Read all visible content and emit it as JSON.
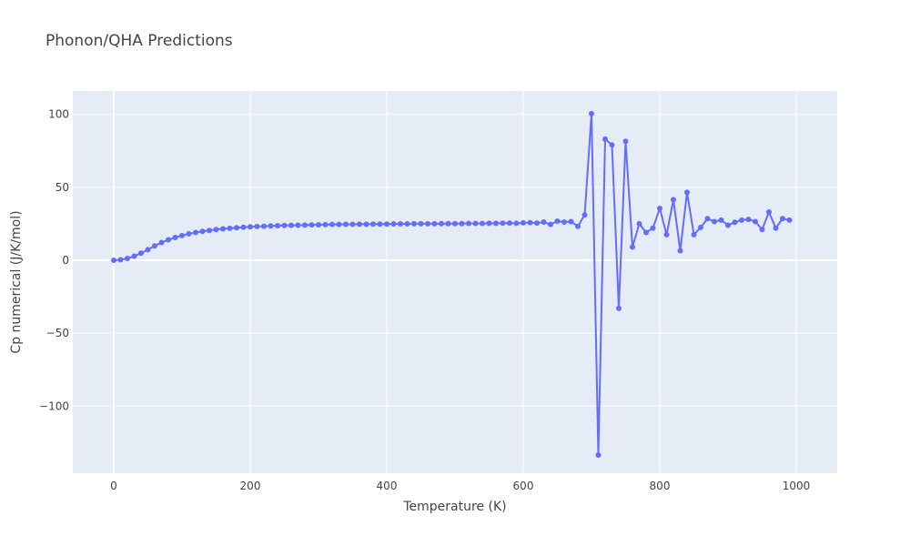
{
  "chart_data": {
    "type": "line",
    "title": "Phonon/QHA Predictions",
    "xlabel": "Temperature (K)",
    "ylabel": "Cp numerical (J/K/mol)",
    "xlim": [
      -60,
      1060
    ],
    "ylim": [
      -146,
      116
    ],
    "xticks": [
      0,
      200,
      400,
      600,
      800,
      1000
    ],
    "xtick_labels": [
      "0",
      "200",
      "400",
      "600",
      "800",
      "1000"
    ],
    "yticks": [
      -100,
      -50,
      0,
      50,
      100
    ],
    "ytick_labels": [
      "−100",
      "−50",
      "0",
      "50",
      "100"
    ],
    "grid": true,
    "line_color": "#636efa",
    "plot_bg": "#e5ecf6",
    "series": [
      {
        "mode": "lines+markers",
        "x": [
          0,
          10,
          20,
          30,
          40,
          50,
          60,
          70,
          80,
          90,
          100,
          110,
          120,
          130,
          140,
          150,
          160,
          170,
          180,
          190,
          200,
          210,
          220,
          230,
          240,
          250,
          260,
          270,
          280,
          290,
          300,
          310,
          320,
          330,
          340,
          350,
          360,
          370,
          380,
          390,
          400,
          410,
          420,
          430,
          440,
          450,
          460,
          470,
          480,
          490,
          500,
          510,
          520,
          530,
          540,
          550,
          560,
          570,
          580,
          590,
          600,
          610,
          620,
          630,
          640,
          650,
          660,
          670,
          680,
          690,
          700,
          710,
          720,
          730,
          740,
          750,
          760,
          770,
          780,
          790,
          800,
          810,
          820,
          830,
          840,
          850,
          860,
          870,
          880,
          890,
          900,
          910,
          920,
          930,
          940,
          950,
          960,
          970,
          980,
          990
        ],
        "y": [
          0,
          0.3,
          1.2,
          2.8,
          4.8,
          7.2,
          9.8,
          12.1,
          14,
          15.6,
          16.9,
          18.1,
          19,
          19.8,
          20.4,
          21,
          21.5,
          21.9,
          22.3,
          22.6,
          22.9,
          23.1,
          23.3,
          23.5,
          23.7,
          23.8,
          23.9,
          24,
          24.1,
          24.2,
          24.3,
          24.4,
          24.5,
          24.5,
          24.6,
          24.6,
          24.7,
          24.7,
          24.8,
          24.8,
          24.8,
          24.9,
          24.9,
          24.9,
          25,
          25,
          25,
          25,
          25.1,
          25.1,
          25.1,
          25.1,
          25.2,
          25.2,
          25.2,
          25.3,
          25.3,
          25.4,
          25.5,
          25.3,
          25.6,
          25.8,
          25.5,
          26.2,
          24.5,
          26.8,
          26.2,
          26.5,
          23.2,
          31,
          100.5,
          -133.5,
          83,
          79,
          -33,
          81.5,
          9,
          25,
          19,
          22,
          35.5,
          17.5,
          41.5,
          6.5,
          46.5,
          17.5,
          22.5,
          28.5,
          26.5,
          27.5,
          24,
          26,
          27.5,
          28,
          26.5,
          21,
          33,
          22,
          28.5,
          27.5
        ]
      }
    ]
  }
}
